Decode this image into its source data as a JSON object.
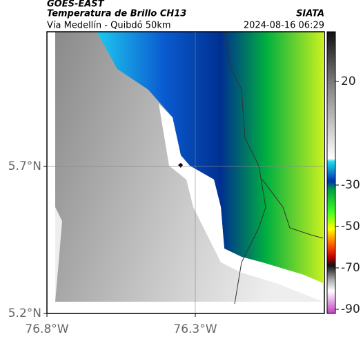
{
  "header": {
    "source": "GOES-EAST",
    "product": "Temperatura de Brillo CH13",
    "brand": "SIATA",
    "route": "Vía Medellín - Quibdó 50km",
    "timestamp": "2024-08-16 06:29"
  },
  "map": {
    "xlim": [
      -76.8,
      -75.865
    ],
    "ylim": [
      5.2,
      6.158
    ],
    "xticks": [
      {
        "value": -76.8,
        "label": "76.8°W"
      },
      {
        "value": -76.3,
        "label": "76.3°W"
      }
    ],
    "yticks": [
      {
        "value": 5.2,
        "label": "5.2°N"
      },
      {
        "value": 5.7,
        "label": "5.7°N"
      }
    ]
  },
  "colorbar": {
    "lim": [
      -92,
      44
    ],
    "ticks": [
      20,
      -30,
      -50,
      -70,
      -90
    ]
  }
}
